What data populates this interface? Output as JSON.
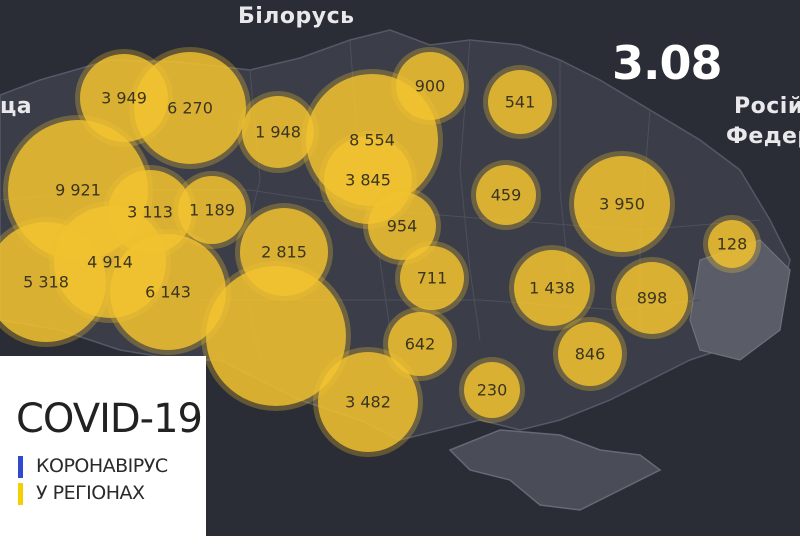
{
  "map": {
    "date": "3.08",
    "labels": {
      "belarus": "Білорусь",
      "russia_line1": "Росій",
      "russia_line2": "Федер",
      "west_fragment": "ца"
    },
    "bubble_color": "#f2c230",
    "background_color": "#2b2d36",
    "bubbles": [
      {
        "name": "bubble-volyn",
        "value": "3 949"
      },
      {
        "name": "bubble-rivne",
        "value": "6 270"
      },
      {
        "name": "bubble-zhytomyr",
        "value": "1 948"
      },
      {
        "name": "bubble-kyiv-region",
        "value": "8 554"
      },
      {
        "name": "bubble-kyiv-city",
        "value": "3 845"
      },
      {
        "name": "bubble-chernihiv",
        "value": "900"
      },
      {
        "name": "bubble-sumy",
        "value": "541"
      },
      {
        "name": "bubble-lviv",
        "value": "9 921"
      },
      {
        "name": "bubble-ternopil",
        "value": "3 113"
      },
      {
        "name": "bubble-khmelnytskyi",
        "value": "1 189"
      },
      {
        "name": "bubble-vinnytsia",
        "value": "2 815"
      },
      {
        "name": "bubble-cherkasy",
        "value": "954"
      },
      {
        "name": "bubble-poltava",
        "value": "459"
      },
      {
        "name": "bubble-kharkiv",
        "value": "3 950"
      },
      {
        "name": "bubble-luhansk",
        "value": "128"
      },
      {
        "name": "bubble-zakarpattia",
        "value": "5 318"
      },
      {
        "name": "bubble-ivano-frankivsk",
        "value": "4 914"
      },
      {
        "name": "bubble-chernivtsi",
        "value": "6 143"
      },
      {
        "name": "bubble-kirovohrad",
        "value": "711"
      },
      {
        "name": "bubble-dnipro",
        "value": "1 438"
      },
      {
        "name": "bubble-donetsk",
        "value": "898"
      },
      {
        "name": "bubble-mykolaiv",
        "value": "642"
      },
      {
        "name": "bubble-zaporizhzhia",
        "value": "846"
      },
      {
        "name": "bubble-odesa",
        "value": "3 482"
      },
      {
        "name": "bubble-kherson",
        "value": "230"
      },
      {
        "name": "bubble-unlabeled",
        "value": ""
      }
    ]
  },
  "info": {
    "title": "COVID-19",
    "line1": "КОРОНАВІРУС",
    "line2": "У РЕГІОНАХ",
    "flag_blue": "#2f4ad0",
    "flag_yellow": "#f5d000"
  }
}
